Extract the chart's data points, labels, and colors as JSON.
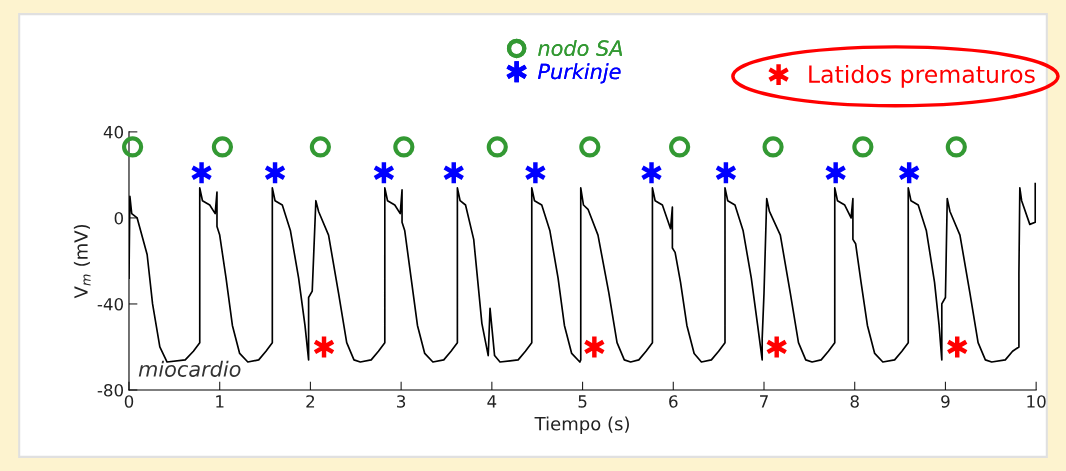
{
  "chart_data": {
    "type": "line",
    "xlabel": "Tiempo (s)",
    "ylabel": "V$_{m}$ (mV)",
    "xlim": [
      0,
      10
    ],
    "ylim": [
      -80,
      40
    ],
    "xticks": [
      0,
      1,
      2,
      3,
      4,
      5,
      6,
      7,
      8,
      9,
      10
    ],
    "yticks": [
      -80,
      -40,
      0,
      40
    ],
    "grid": false,
    "legend": "top",
    "series": [
      {
        "name": "miocardio",
        "color": "#000000",
        "marker": "none",
        "x": [
          0,
          0.01,
          0.03,
          0.09,
          0.2,
          0.26,
          0.34,
          0.42,
          0.62,
          0.71,
          0.78,
          0.78,
          0.81,
          0.89,
          0.95,
          0.97,
          0.97,
          1.0,
          1.07,
          1.14,
          1.22,
          1.31,
          1.43,
          1.51,
          1.58,
          1.58,
          1.61,
          1.69,
          1.78,
          1.87,
          1.94,
          1.98,
          1.98,
          2.02,
          2.06,
          2.09,
          2.2,
          2.31,
          2.4,
          2.48,
          2.55,
          2.67,
          2.75,
          2.82,
          2.82,
          2.85,
          2.93,
          2.99,
          3.01,
          3.01,
          3.04,
          3.11,
          3.18,
          3.26,
          3.35,
          3.47,
          3.55,
          3.62,
          3.62,
          3.65,
          3.71,
          3.8,
          3.89,
          3.96,
          3.98,
          4.03,
          4.09,
          4.29,
          4.37,
          4.44,
          4.44,
          4.47,
          4.55,
          4.64,
          4.73,
          4.8,
          4.88,
          4.97,
          4.98,
          4.98,
          5.01,
          5.06,
          5.17,
          5.29,
          5.38,
          5.46,
          5.53,
          5.62,
          5.7,
          5.77,
          5.77,
          5.8,
          5.88,
          5.97,
          5.99,
          5.99,
          6.02,
          6.08,
          6.15,
          6.23,
          6.31,
          6.42,
          6.5,
          6.57,
          6.57,
          6.6,
          6.68,
          6.77,
          6.86,
          6.93,
          6.98,
          6.98,
          7.0,
          7.03,
          7.06,
          7.18,
          7.29,
          7.38,
          7.46,
          7.53,
          7.63,
          7.71,
          7.78,
          7.78,
          7.81,
          7.89,
          7.96,
          7.98,
          7.98,
          8.01,
          8.07,
          8.14,
          8.22,
          8.31,
          8.44,
          8.52,
          8.59,
          8.59,
          8.62,
          8.7,
          8.79,
          8.88,
          8.93,
          8.96,
          8.96,
          9.0,
          9.02,
          9.05,
          9.16,
          9.27,
          9.36,
          9.44,
          9.51,
          9.66,
          9.74,
          9.81,
          9.81,
          9.82,
          9.84,
          9.93,
          9.99,
          9.99
        ],
        "values": [
          -28,
          10,
          2,
          0,
          -17,
          -40,
          -60,
          -67,
          -66,
          -62,
          -58,
          14,
          8,
          6,
          2,
          12,
          -4,
          -8,
          -28,
          -50,
          -63,
          -67,
          -66,
          -62,
          -58,
          14,
          8,
          6,
          -6,
          -28,
          -50,
          -66,
          -37,
          -34,
          8,
          3,
          -8,
          -35,
          -58,
          -66,
          -67,
          -66,
          -62,
          -58,
          14,
          8,
          6,
          2,
          13,
          -2,
          -6,
          -28,
          -50,
          -63,
          -67,
          -66,
          -62,
          -58,
          14,
          8,
          6,
          -10,
          -49,
          -64,
          -42,
          -64,
          -67,
          -66,
          -62,
          -58,
          14,
          8,
          6,
          -6,
          -28,
          -50,
          -63,
          -67,
          -66,
          14,
          6,
          4,
          -8,
          -35,
          -58,
          -66,
          -67,
          -66,
          -62,
          -58,
          14,
          8,
          6,
          -5,
          5,
          -14,
          -16,
          -30,
          -50,
          -63,
          -67,
          -66,
          -62,
          -58,
          14,
          8,
          6,
          -6,
          -28,
          -50,
          -66,
          -56,
          -35,
          9,
          3,
          -8,
          -35,
          -58,
          -66,
          -67,
          -66,
          -62,
          -58,
          14,
          8,
          6,
          0,
          9,
          -10,
          -12,
          -30,
          -50,
          -63,
          -67,
          -66,
          -62,
          -58,
          14,
          8,
          6,
          -6,
          -30,
          -50,
          -66,
          -40,
          -37,
          9,
          3,
          -8,
          -35,
          -58,
          -66,
          -67,
          -66,
          -62,
          -60,
          -26,
          14,
          8,
          -3,
          -2,
          16
        ]
      },
      {
        "name": "nodo SA",
        "type": "scatter",
        "color": "#339933",
        "marker": "circle",
        "x": [
          0.04,
          1.03,
          2.11,
          3.03,
          4.06,
          5.08,
          6.07,
          7.1,
          8.09,
          9.12
        ],
        "values": [
          33,
          33,
          33,
          33,
          33,
          33,
          33,
          33,
          33,
          33
        ]
      },
      {
        "name": "Purkinje",
        "type": "scatter",
        "color": "#0000ff",
        "marker": "cross",
        "x": [
          0.8,
          1.61,
          2.81,
          3.58,
          4.48,
          5.76,
          6.58,
          7.79,
          8.6
        ],
        "values": [
          21,
          21,
          21,
          21,
          21,
          21,
          21,
          21,
          21
        ]
      },
      {
        "name": "Latidos prematuros",
        "type": "scatter",
        "color": "#ff0000",
        "marker": "cross",
        "x": [
          2.15,
          5.13,
          7.14,
          9.13
        ],
        "values": [
          -60,
          -60,
          -60,
          -60
        ]
      }
    ]
  }
}
